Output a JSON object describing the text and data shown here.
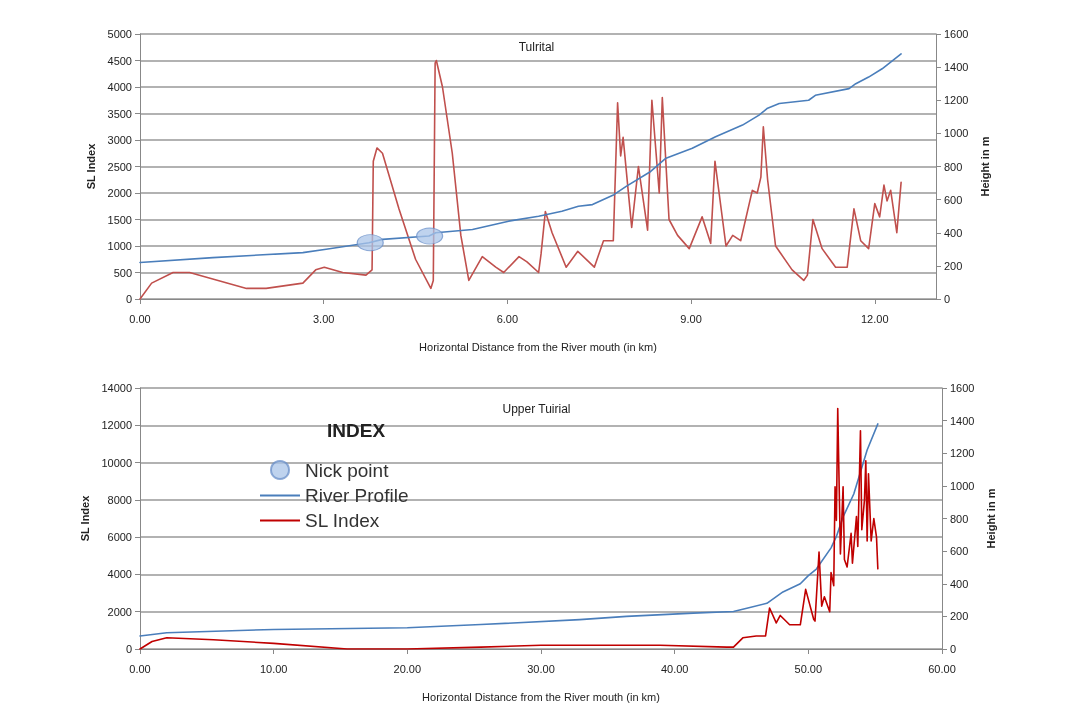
{
  "chart_data": [
    {
      "type": "line",
      "title": "Tulrital",
      "xlabel": "Horizontal Distance from the River mouth (in km)",
      "ylabel": "SL Index",
      "y2label": "Height in m",
      "xlim": [
        0,
        13
      ],
      "xticks": [
        {
          "value": 0,
          "label": "0.00"
        },
        {
          "value": 3,
          "label": "3.00"
        },
        {
          "value": 6,
          "label": "6.00"
        },
        {
          "value": 9,
          "label": "9.00"
        },
        {
          "value": 12,
          "label": "12.00"
        }
      ],
      "ylim": [
        0,
        5000
      ],
      "yticks": [
        0,
        500,
        1000,
        1500,
        2000,
        2500,
        3000,
        3500,
        4000,
        4500,
        5000
      ],
      "y2lim": [
        0,
        1600
      ],
      "y2ticks": [
        0,
        200,
        400,
        600,
        800,
        1000,
        1200,
        1400,
        1600
      ],
      "grid": "y",
      "marker": "none",
      "series": [
        {
          "color": "#c0504d",
          "x": [
            0,
            0.19,
            0.54,
            0.81,
            1.74,
            2.06,
            2.66,
            2.87,
            3.01,
            3.31,
            3.69,
            3.79,
            3.81,
            3.87,
            3.96,
            4.23,
            4.5,
            4.75,
            4.79,
            4.82,
            4.84,
            4.94,
            5.1,
            5.24,
            5.37,
            5.59,
            5.81,
            5.94,
            6.19,
            6.32,
            6.51,
            6.55,
            6.62,
            6.73,
            6.96,
            7.15,
            7.42,
            7.57,
            7.73,
            7.8,
            7.85,
            7.89,
            8.03,
            8.14,
            8.29,
            8.36,
            8.48,
            8.53,
            8.64,
            8.78,
            8.97,
            9.18,
            9.32,
            9.39,
            9.57,
            9.68,
            9.81,
            10.0,
            10.08,
            10.14,
            10.18,
            10.25,
            10.38,
            10.65,
            10.84,
            10.9,
            10.99,
            11.14,
            11.36,
            11.55,
            11.66,
            11.77,
            11.9,
            12.0,
            12.08,
            12.15,
            12.2,
            12.26,
            12.36,
            12.43
          ],
          "values": [
            0,
            300,
            500,
            500,
            200,
            200,
            300,
            550,
            600,
            500,
            450,
            550,
            2600,
            2850,
            2750,
            1700,
            750,
            200,
            350,
            4450,
            4500,
            4000,
            2750,
            1200,
            350,
            800,
            600,
            500,
            800,
            700,
            500,
            850,
            1650,
            1250,
            600,
            900,
            600,
            1100,
            1100,
            3700,
            2700,
            3050,
            1350,
            2500,
            1300,
            3750,
            2000,
            3800,
            1500,
            1200,
            950,
            1550,
            1050,
            2600,
            1000,
            1200,
            1100,
            2050,
            2000,
            2300,
            3250,
            2250,
            1000,
            550,
            350,
            450,
            1500,
            950,
            600,
            600,
            1700,
            1100,
            950,
            1800,
            1550,
            2150,
            1850,
            2050,
            1250,
            2200
          ]
        },
        {
          "color": "#4a7ebb",
          "axis": "y2",
          "x": [
            0,
            1.19,
            2.66,
            3.04,
            3.74,
            3.96,
            4.72,
            4.83,
            5.43,
            6.02,
            6.51,
            6.89,
            7.16,
            7.39,
            7.74,
            7.94,
            8.34,
            8.59,
            9.02,
            9.4,
            9.84,
            10.11,
            10.24,
            10.44,
            10.92,
            11.03,
            11.58,
            11.69,
            11.9,
            12.12,
            12.43
          ],
          "values": [
            220,
            250,
            280,
            300,
            340,
            360,
            380,
            400,
            420,
            470,
            500,
            530,
            560,
            570,
            630,
            680,
            770,
            850,
            910,
            980,
            1050,
            1110,
            1150,
            1180,
            1200,
            1230,
            1270,
            1300,
            1340,
            1390,
            1480
          ]
        },
        {
          "type": "scatter",
          "color": "#a9c4e8",
          "axis": "y2",
          "marker": "circle",
          "x": [
            3.76,
            4.73
          ],
          "values": [
            340,
            380
          ]
        }
      ]
    },
    {
      "type": "line",
      "title": "Upper Tuirial",
      "xlabel": "Horizontal Distance from the River mouth (in km)",
      "ylabel": "SL Index",
      "y2label": "Height in m",
      "legend_title": "INDEX",
      "legend": "top left",
      "xlim": [
        0,
        60
      ],
      "xticks": [
        {
          "value": 0,
          "label": "0.00"
        },
        {
          "value": 10,
          "label": "10.00"
        },
        {
          "value": 20,
          "label": "20.00"
        },
        {
          "value": 30,
          "label": "30.00"
        },
        {
          "value": 40,
          "label": "40.00"
        },
        {
          "value": 50,
          "label": "50.00"
        },
        {
          "value": 60,
          "label": "60.00"
        }
      ],
      "ylim": [
        0,
        14000
      ],
      "yticks": [
        0,
        2000,
        4000,
        6000,
        8000,
        10000,
        12000,
        14000
      ],
      "y2lim": [
        0,
        1600
      ],
      "y2ticks": [
        0,
        200,
        400,
        600,
        800,
        1000,
        1200,
        1400,
        1600
      ],
      "grid": "y",
      "marker": "none",
      "series": [
        {
          "type": "scatter",
          "name": "Nick point",
          "color": "#a9c4e8",
          "axis": "y2",
          "marker": "circle"
        },
        {
          "name": "River Profile",
          "color": "#4a7ebb",
          "axis": "y2",
          "x": [
            0,
            2,
            10,
            20,
            25.5,
            32.9,
            36.4,
            41.4,
            44.4,
            45.4,
            46.9,
            48.1,
            49.4,
            50.0,
            50.6,
            51.7,
            52.1,
            52.6,
            53.4,
            54.4,
            55.2
          ],
          "values": [
            80,
            100,
            120,
            130,
            150,
            180,
            200,
            220,
            230,
            250,
            280,
            350,
            400,
            450,
            490,
            620,
            690,
            810,
            950,
            1220,
            1380
          ]
        },
        {
          "name": "SL Index",
          "color": "#c00000",
          "x": [
            0,
            0.9,
            2.0,
            5.5,
            10,
            15.5,
            20,
            25.5,
            30,
            32.9,
            36.4,
            38.9,
            43.9,
            44.4,
            45.1,
            46.1,
            46.8,
            47.1,
            47.6,
            47.9,
            48.6,
            49.4,
            49.8,
            50.4,
            50.5,
            50.8,
            51.0,
            51.2,
            51.6,
            51.7,
            51.9,
            52.0,
            52.1,
            52.2,
            52.4,
            52.6,
            52.7,
            52.9,
            53.2,
            53.3,
            53.6,
            53.7,
            53.9,
            54.0,
            54.2,
            54.3,
            54.4,
            54.5,
            54.7,
            54.9,
            55.1,
            55.2
          ],
          "values": [
            0,
            400,
            600,
            500,
            300,
            0,
            0,
            100,
            200,
            200,
            200,
            200,
            100,
            100,
            600,
            700,
            700,
            2200,
            1400,
            1800,
            1300,
            1300,
            3200,
            1600,
            1500,
            5200,
            2300,
            2800,
            2000,
            4100,
            3400,
            8700,
            6900,
            12900,
            5100,
            8700,
            4800,
            4400,
            6200,
            4600,
            7100,
            5500,
            11700,
            6400,
            8000,
            10100,
            5800,
            9400,
            5800,
            7000,
            6000,
            4300
          ]
        }
      ]
    }
  ]
}
